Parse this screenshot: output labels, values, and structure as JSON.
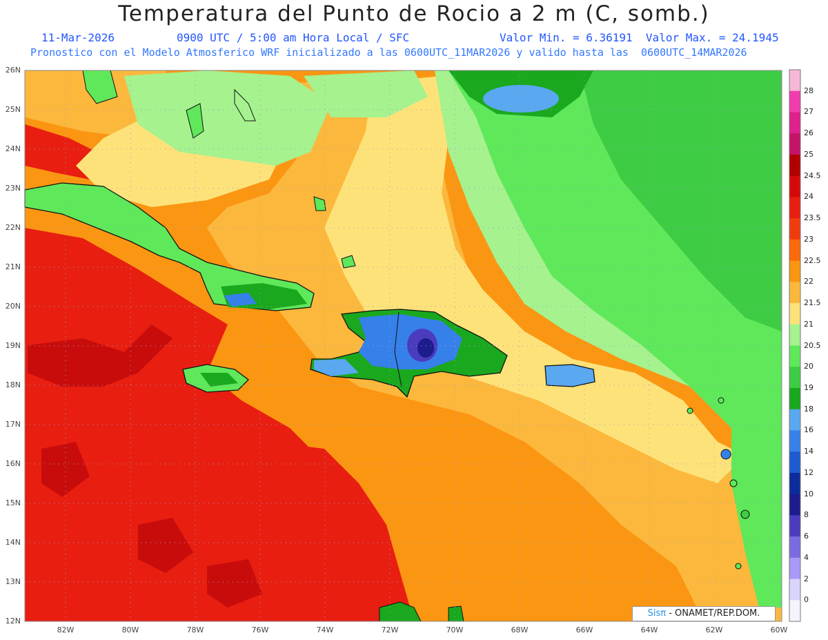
{
  "title": "Temperatura del Punto de Rocio a 2 m (C, somb.)",
  "subtitle_date": "11-Mar-2026",
  "subtitle_time": "0900 UTC / 5:00 am Hora Local / SFC",
  "subtitle_minmax": "Valor Min. = 6.36191  Valor Max. = 24.1945",
  "subtitle_model": "Pronostico con el Modelo Atmosferico WRF inicializado a las 0600UTC_11MAR2026 y valido hasta las  0600UTC_14MAR2026",
  "credit_brand": "Sisπ",
  "credit_text": " - ONAMET/REP.DOM.",
  "lat_labels": [
    "26N",
    "25N",
    "24N",
    "23N",
    "22N",
    "21N",
    "20N",
    "19N",
    "18N",
    "17N",
    "16N",
    "15N",
    "14N",
    "13N",
    "12N"
  ],
  "lon_labels": [
    "82W",
    "80W",
    "78W",
    "76W",
    "74W",
    "72W",
    "70W",
    "68W",
    "66W",
    "64W",
    "62W",
    "60W"
  ],
  "colorbar": {
    "labels": [
      "28",
      "27",
      "26",
      "25",
      "24.5",
      "24",
      "23.5",
      "23",
      "22.5",
      "22",
      "21.5",
      "21",
      "20.5",
      "20",
      "19",
      "18",
      "16",
      "14",
      "12",
      "10",
      "8",
      "6",
      "4",
      "2",
      "0"
    ],
    "colors": [
      "#f7b8d8",
      "#f03cac",
      "#e0208c",
      "#c41468",
      "#b00000",
      "#d40a0a",
      "#e81e10",
      "#f03c0c",
      "#fb6a0a",
      "#fb9612",
      "#fcb83c",
      "#fde27a",
      "#a5f28e",
      "#5fe85a",
      "#3ecc44",
      "#1aa81e",
      "#5aa8f0",
      "#3680ea",
      "#1c5cd0",
      "#0c2c9c",
      "#1c1c8c",
      "#4a3cbc",
      "#7a6ce0",
      "#a89af8",
      "#d8d4fc",
      "#f4f4ff"
    ]
  },
  "map_colors": {
    "ocean_red": "#e81e10",
    "dark_red": "#c80c0c",
    "orange": "#fb9612",
    "light_orange": "#fcb83c",
    "yellow": "#fde27a",
    "light_green": "#a5f28e",
    "green": "#5fe85a",
    "dark_green": "#3ecc44",
    "deep_green": "#1aa81e",
    "light_blue": "#5aa8f0",
    "blue": "#3680ea",
    "navy": "#1c1c8c",
    "purple": "#4a3cbc"
  }
}
